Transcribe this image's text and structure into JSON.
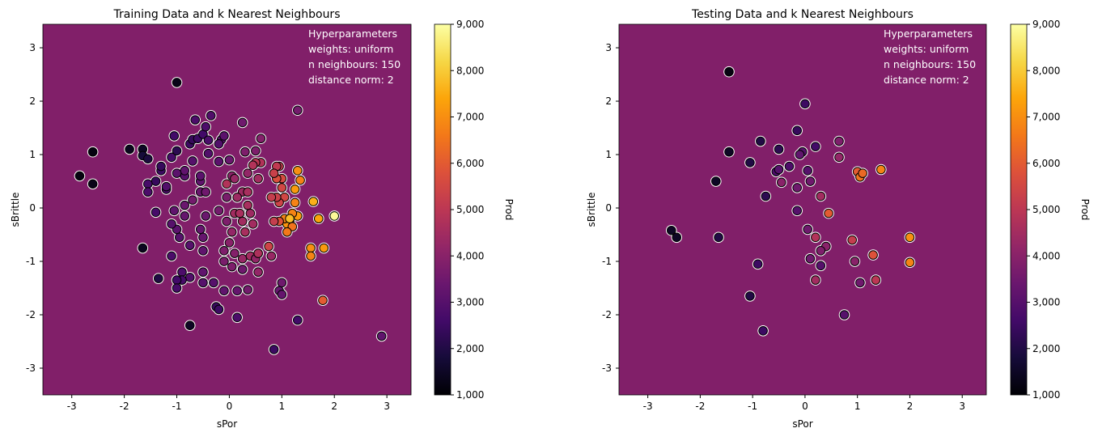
{
  "colors": {
    "background": "#811f69",
    "marker_edge": "#ffffff"
  },
  "chart_data": [
    {
      "type": "scatter",
      "title": "Training Data and k Nearest Neighbours",
      "xlabel": "sPor",
      "ylabel": "sBrittle",
      "xlim": [
        -3.55,
        3.46
      ],
      "ylim": [
        -3.5,
        3.44
      ],
      "xticks": [
        "-3",
        "-2",
        "-1",
        "0",
        "1",
        "2",
        "3"
      ],
      "yticks": [
        "-3",
        "-2",
        "-1",
        "0",
        "1",
        "2",
        "3"
      ],
      "xtick_values": [
        -3,
        -2,
        -1,
        0,
        1,
        2,
        3
      ],
      "ytick_values": [
        -3,
        -2,
        -1,
        0,
        1,
        2,
        3
      ],
      "annotation": [
        "Hyperparameters",
        "weights: uniform",
        "n neighbours: 150",
        "distance norm: 2"
      ],
      "colorbar": {
        "label": "Prod",
        "range": [
          1000,
          9000
        ],
        "ticks": [
          "1,000",
          "2,000",
          "3,000",
          "4,000",
          "5,000",
          "6,000",
          "7,000",
          "8,000",
          "9,000"
        ],
        "tick_values": [
          1000,
          2000,
          3000,
          4000,
          5000,
          6000,
          7000,
          8000,
          9000
        ],
        "colormap": "inferno"
      },
      "points": [
        [
          -1,
          2.35,
          1300
        ],
        [
          -2.85,
          0.6,
          1200
        ],
        [
          -2.6,
          1.05,
          1200
        ],
        [
          -2.6,
          0.45,
          1300
        ],
        [
          -1.9,
          1.1,
          1400
        ],
        [
          -1.65,
          1.1,
          1500
        ],
        [
          -1.65,
          0.98,
          1800
        ],
        [
          -1.55,
          0.92,
          1900
        ],
        [
          -1.65,
          -0.75,
          1400
        ],
        [
          -1.35,
          -1.32,
          2000
        ],
        [
          -0.75,
          -2.2,
          1500
        ],
        [
          -0.25,
          -1.85,
          2400
        ],
        [
          -0.2,
          -1.9,
          2500
        ],
        [
          0.15,
          -2.05,
          2800
        ],
        [
          0.85,
          -2.65,
          2500
        ],
        [
          1.3,
          -2.1,
          2600
        ],
        [
          2.9,
          -2.4,
          3200
        ],
        [
          1.78,
          -1.73,
          6000
        ],
        [
          1.3,
          1.83,
          3600
        ],
        [
          2.0,
          -0.15,
          8900
        ],
        [
          1.8,
          -0.75,
          7200
        ],
        [
          1.55,
          -0.75,
          7000
        ],
        [
          1.55,
          -0.9,
          6800
        ],
        [
          1.7,
          -0.2,
          7400
        ],
        [
          1.6,
          0.12,
          7600
        ],
        [
          1.35,
          0.52,
          6800
        ],
        [
          1.3,
          0.7,
          7000
        ],
        [
          1.25,
          0.35,
          7200
        ],
        [
          1.0,
          0.55,
          5600
        ],
        [
          1.0,
          0.38,
          5500
        ],
        [
          1.05,
          0.2,
          5500
        ],
        [
          1.3,
          -0.15,
          7200
        ],
        [
          1.2,
          -0.1,
          6800
        ],
        [
          1.15,
          -0.25,
          7000
        ],
        [
          1.1,
          -0.3,
          7100
        ],
        [
          1.05,
          -0.2,
          6800
        ],
        [
          1.2,
          -0.35,
          6500
        ],
        [
          1.1,
          -0.45,
          6600
        ],
        [
          1.15,
          -0.2,
          7800
        ],
        [
          0.95,
          -0.25,
          5800
        ],
        [
          0.85,
          -0.25,
          5200
        ],
        [
          1.25,
          0.1,
          6800
        ],
        [
          0.95,
          0.1,
          5400
        ],
        [
          0.9,
          0.2,
          5300
        ],
        [
          0.9,
          0.55,
          5700
        ],
        [
          0.95,
          0.78,
          5200
        ],
        [
          0.9,
          0.78,
          5100
        ],
        [
          0.85,
          0.65,
          5300
        ],
        [
          0.8,
          0.2,
          5200
        ],
        [
          0.75,
          -0.72,
          5400
        ],
        [
          0.55,
          -0.85,
          4800
        ],
        [
          0.55,
          -1.2,
          4200
        ],
        [
          0.35,
          -1.53,
          3600
        ],
        [
          1.0,
          -1.4,
          3500
        ],
        [
          0.95,
          -1.55,
          3300
        ],
        [
          1.0,
          -1.62,
          3300
        ],
        [
          0.6,
          0.85,
          4800
        ],
        [
          0.5,
          0.85,
          5000
        ],
        [
          0.45,
          0.8,
          4800
        ],
        [
          0.3,
          1.05,
          3800
        ],
        [
          0.25,
          1.6,
          3500
        ],
        [
          0.6,
          1.3,
          3900
        ],
        [
          0.5,
          1.07,
          3800
        ],
        [
          0.55,
          0.55,
          4500
        ],
        [
          0.35,
          0.65,
          4200
        ],
        [
          0.25,
          0.3,
          4400
        ],
        [
          0.35,
          0.3,
          4600
        ],
        [
          0.15,
          0.2,
          4400
        ],
        [
          0.05,
          0.6,
          4000
        ],
        [
          0.0,
          0.9,
          3400
        ],
        [
          0.1,
          0.55,
          4300
        ],
        [
          -0.05,
          0.45,
          4800
        ],
        [
          0.35,
          0.05,
          4600
        ],
        [
          0.25,
          -0.25,
          4500
        ],
        [
          0.45,
          -0.3,
          4500
        ],
        [
          0.3,
          -0.45,
          4600
        ],
        [
          0.4,
          -0.1,
          4400
        ],
        [
          0.1,
          -0.1,
          4500
        ],
        [
          0.2,
          -0.1,
          4600
        ],
        [
          0.05,
          -0.45,
          4200
        ],
        [
          0.0,
          -0.65,
          4000
        ],
        [
          0.25,
          -0.95,
          4300
        ],
        [
          0.4,
          -0.9,
          4500
        ],
        [
          0.5,
          -0.95,
          4200
        ],
        [
          0.1,
          -0.85,
          3900
        ],
        [
          0.05,
          -1.1,
          3800
        ],
        [
          -0.1,
          -1.0,
          3700
        ],
        [
          0.25,
          -1.15,
          3500
        ],
        [
          0.15,
          -1.55,
          3300
        ],
        [
          -0.1,
          -1.55,
          3200
        ],
        [
          -0.3,
          -1.4,
          3000
        ],
        [
          -0.5,
          -1.4,
          3000
        ],
        [
          -0.5,
          -1.2,
          3200
        ],
        [
          -0.75,
          -1.3,
          2900
        ],
        [
          -0.9,
          -1.2,
          2800
        ],
        [
          -0.9,
          -1.35,
          2700
        ],
        [
          -1.0,
          -1.35,
          2600
        ],
        [
          -1.0,
          -1.5,
          2700
        ],
        [
          -1.1,
          -0.9,
          2800
        ],
        [
          -0.75,
          -0.7,
          3000
        ],
        [
          -0.5,
          -0.8,
          3200
        ],
        [
          -0.5,
          -0.55,
          3300
        ],
        [
          -0.1,
          -0.8,
          3800
        ],
        [
          -0.55,
          -0.4,
          3300
        ],
        [
          -0.95,
          -0.55,
          3000
        ],
        [
          -1.0,
          -0.4,
          3100
        ],
        [
          -1.1,
          -0.3,
          3000
        ],
        [
          -1.05,
          -0.05,
          3200
        ],
        [
          -0.85,
          0.05,
          3400
        ],
        [
          -0.85,
          -0.15,
          3300
        ],
        [
          -0.45,
          -0.15,
          3400
        ],
        [
          -0.2,
          -0.05,
          3600
        ],
        [
          -0.05,
          0.2,
          3700
        ],
        [
          -0.05,
          -0.25,
          3800
        ],
        [
          -0.7,
          0.15,
          3600
        ],
        [
          -0.55,
          0.3,
          3400
        ],
        [
          -0.45,
          0.3,
          3500
        ],
        [
          -0.55,
          0.5,
          3200
        ],
        [
          -0.55,
          0.6,
          3100
        ],
        [
          -0.85,
          0.6,
          3000
        ],
        [
          -0.85,
          0.7,
          3200
        ],
        [
          -1.0,
          0.65,
          3100
        ],
        [
          -1.2,
          0.35,
          2800
        ],
        [
          -1.2,
          0.4,
          2900
        ],
        [
          -1.4,
          0.5,
          2400
        ],
        [
          -1.55,
          0.45,
          2700
        ],
        [
          -1.55,
          0.3,
          2800
        ],
        [
          -1.4,
          -0.08,
          2700
        ],
        [
          -1.3,
          0.7,
          2500
        ],
        [
          -1.3,
          0.78,
          2400
        ],
        [
          -1.1,
          0.95,
          2700
        ],
        [
          -1.0,
          1.07,
          2200
        ],
        [
          -1.05,
          1.35,
          2600
        ],
        [
          -0.7,
          0.88,
          3000
        ],
        [
          -0.75,
          1.2,
          2500
        ],
        [
          -0.7,
          1.28,
          2400
        ],
        [
          -0.6,
          1.3,
          2500
        ],
        [
          -0.5,
          1.38,
          2600
        ],
        [
          -0.45,
          1.52,
          2800
        ],
        [
          -0.35,
          1.73,
          2900
        ],
        [
          -0.4,
          1.27,
          2800
        ],
        [
          -0.65,
          1.65,
          2800
        ],
        [
          -0.15,
          1.28,
          3000
        ],
        [
          -0.1,
          1.35,
          3100
        ],
        [
          -0.2,
          1.2,
          2900
        ],
        [
          -0.4,
          1.02,
          2900
        ],
        [
          -0.2,
          0.87,
          3100
        ],
        [
          0.55,
          -0.85,
          4700
        ],
        [
          0.8,
          -0.9,
          4300
        ]
      ]
    },
    {
      "type": "scatter",
      "title": "Testing Data and k Nearest Neighbours",
      "xlabel": "sPor",
      "ylabel": "sBrittle",
      "xlim": [
        -3.55,
        3.46
      ],
      "ylim": [
        -3.5,
        3.44
      ],
      "xticks": [
        "-3",
        "-2",
        "-1",
        "0",
        "1",
        "2",
        "3"
      ],
      "yticks": [
        "-3",
        "-2",
        "-1",
        "0",
        "1",
        "2",
        "3"
      ],
      "xtick_values": [
        -3,
        -2,
        -1,
        0,
        1,
        2,
        3
      ],
      "ytick_values": [
        -3,
        -2,
        -1,
        0,
        1,
        2,
        3
      ],
      "annotation": [
        "Hyperparameters",
        "weights: uniform",
        "n neighbours: 150",
        "distance norm: 2"
      ],
      "colorbar": {
        "label": "Prod",
        "range": [
          1000,
          9000
        ],
        "ticks": [
          "1,000",
          "2,000",
          "3,000",
          "4,000",
          "5,000",
          "6,000",
          "7,000",
          "8,000",
          "9,000"
        ],
        "tick_values": [
          1000,
          2000,
          3000,
          4000,
          5000,
          6000,
          7000,
          8000,
          9000
        ],
        "colormap": "inferno"
      },
      "points": [
        [
          -1.45,
          2.55,
          1200
        ],
        [
          0,
          1.95,
          2500
        ],
        [
          -1.45,
          1.05,
          1500
        ],
        [
          -0.15,
          1.45,
          2400
        ],
        [
          -0.85,
          1.25,
          2000
        ],
        [
          -0.5,
          1.1,
          2200
        ],
        [
          0.2,
          1.15,
          2600
        ],
        [
          0.65,
          1.25,
          3800
        ],
        [
          0.65,
          0.95,
          4200
        ],
        [
          -0.05,
          1.05,
          3000
        ],
        [
          -0.1,
          1.0,
          3200
        ],
        [
          -1.05,
          0.85,
          2000
        ],
        [
          -0.3,
          0.78,
          2800
        ],
        [
          0.05,
          0.7,
          3000
        ],
        [
          -0.55,
          0.68,
          2800
        ],
        [
          -0.5,
          0.72,
          3000
        ],
        [
          0.1,
          0.5,
          3500
        ],
        [
          -0.45,
          0.48,
          4000
        ],
        [
          -0.15,
          0.38,
          3500
        ],
        [
          -1.7,
          0.5,
          1500
        ],
        [
          -0.75,
          0.22,
          2200
        ],
        [
          0.3,
          0.22,
          4500
        ],
        [
          1.0,
          0.68,
          6000
        ],
        [
          1.05,
          0.58,
          6500
        ],
        [
          1.1,
          0.65,
          6300
        ],
        [
          1.45,
          0.72,
          6800
        ],
        [
          0.45,
          -0.1,
          6000
        ],
        [
          -0.15,
          -0.05,
          3000
        ],
        [
          0.05,
          -0.4,
          3500
        ],
        [
          0.2,
          -0.55,
          4800
        ],
        [
          0.4,
          -0.72,
          4000
        ],
        [
          0.3,
          -0.8,
          3800
        ],
        [
          -2.55,
          -0.42,
          1500
        ],
        [
          -2.45,
          -0.55,
          1500
        ],
        [
          -1.65,
          -0.55,
          2000
        ],
        [
          0.9,
          -0.6,
          5200
        ],
        [
          1.3,
          -0.88,
          5800
        ],
        [
          2.0,
          -0.55,
          7000
        ],
        [
          2.0,
          -1.02,
          6800
        ],
        [
          0.95,
          -1.0,
          4000
        ],
        [
          0.1,
          -0.95,
          3500
        ],
        [
          0.3,
          -1.08,
          3000
        ],
        [
          -0.9,
          -1.05,
          2500
        ],
        [
          0.2,
          -1.35,
          4500
        ],
        [
          1.05,
          -1.4,
          3500
        ],
        [
          1.35,
          -1.35,
          5000
        ],
        [
          -1.05,
          -1.65,
          2000
        ],
        [
          0.75,
          -2.0,
          3000
        ],
        [
          -0.8,
          -2.3,
          2500
        ]
      ]
    }
  ]
}
